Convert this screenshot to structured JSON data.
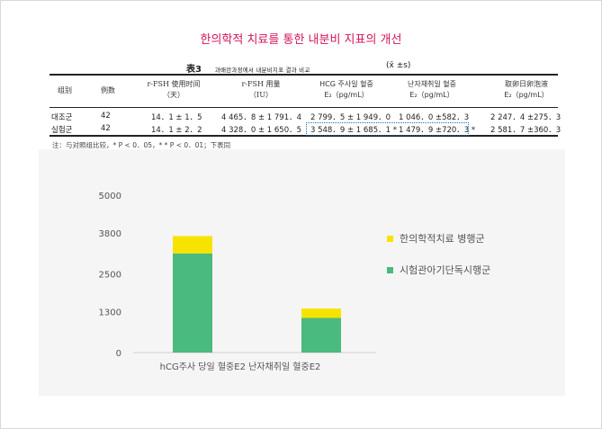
{
  "heading": "한의학적 치료를 통한 내분비 지표의 개선",
  "table": {
    "number": "表3",
    "caption": "과배란과정에서 내분비지표 결과 비교",
    "mean_sd": "(x̄ ±s)",
    "headers": {
      "group": "组别",
      "cases": "例数",
      "fsh_days": {
        "line1": "r-FSH 使用时间",
        "line2": "（天）"
      },
      "fsh_dose": {
        "line1": "r-FSH 用量",
        "line2": "（IU）"
      },
      "hcg": {
        "line1": "HCG 주사일 혈중",
        "line2": "E₂（pg/mL）"
      },
      "retrieval": {
        "line1": "난자채취일 혈중",
        "line2": "E₂（pg/mL）"
      },
      "oocyte": {
        "line1": "取卵日卵泡液",
        "line2": "E₂（pg/mL）"
      }
    },
    "rows": [
      {
        "group": "대조군",
        "cases": "42",
        "fsh_days": "14．1 ± 1．5",
        "fsh_dose": "4 465．8 ± 1 791．4",
        "hcg": "2 799．5 ± 1 949．0",
        "retrieval": "1 046．0 ±582．3",
        "oocyte": "2 247．4 ±275．3"
      },
      {
        "group": "실험군",
        "cases": "42",
        "fsh_days": "14．1 ± 2．2",
        "fsh_dose": "4 328．0 ± 1 650．5",
        "hcg": "3 548．9 ± 1 685．1 *",
        "retrieval": "1 479．9 ±720．3 *",
        "oocyte": "2 581．7 ±360．3"
      }
    ],
    "note": "注：与对照组比较，* P < 0．05，* * P < 0．01；下表同"
  },
  "chart_data": {
    "type": "bar",
    "stacked": true,
    "categories": [
      "hCG주사 당일 혈중E2",
      "난자채취일 혈중E2"
    ],
    "series": [
      {
        "name": "시험관아기단독시행군",
        "values": [
          3150,
          1100
        ],
        "color": "#4aba7e"
      },
      {
        "name": "한의학적치료 병행군",
        "values": [
          550,
          300
        ],
        "color": "#f7e300"
      }
    ],
    "y_ticks": [
      "0",
      "1300",
      "2500",
      "3800",
      "5000"
    ],
    "ylim": [
      0,
      5000
    ],
    "legend_position": "right",
    "legend_order": [
      "한의학적치료 병행군",
      "시험관아기단독시행군"
    ],
    "category_label": "hCG주사 당일 혈중E2 난자채취일 혈중E2",
    "grid": false
  }
}
